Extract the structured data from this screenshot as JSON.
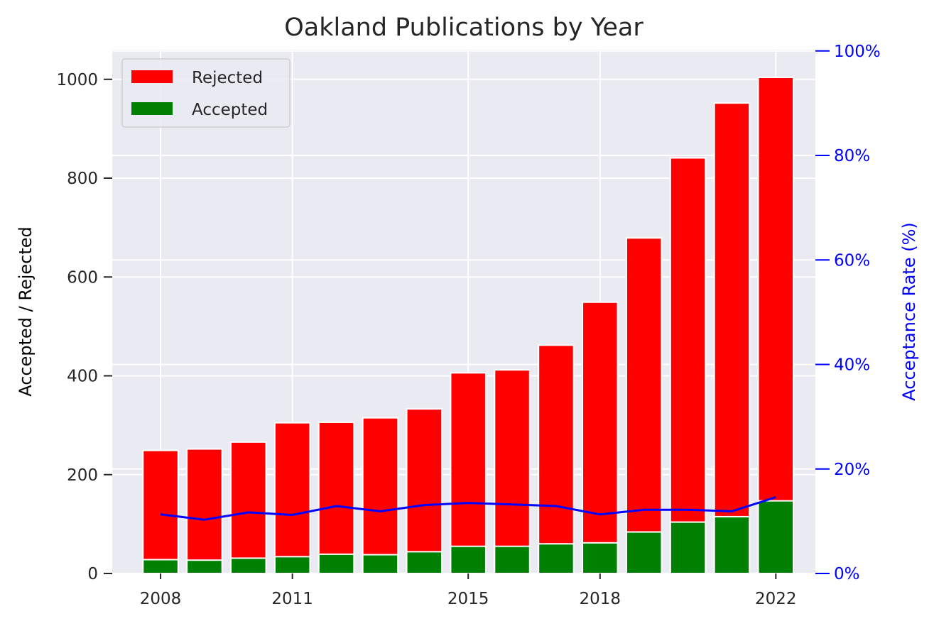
{
  "chart_data": {
    "type": "bar",
    "title": "Oakland Publications by Year",
    "ylabel": "Accepted / Rejected",
    "ylabel_right": "Acceptance Rate (%)",
    "x": [
      2008,
      2009,
      2010,
      2011,
      2012,
      2013,
      2014,
      2015,
      2016,
      2017,
      2018,
      2019,
      2020,
      2021,
      2022
    ],
    "x_tick_labels": [
      "2008",
      "2011",
      "2015",
      "2018",
      "2022"
    ],
    "x_tick_values": [
      2008,
      2011,
      2015,
      2018,
      2022
    ],
    "xlim": [
      2006.9,
      2022.9
    ],
    "ylim": [
      0,
      1060
    ],
    "y_ticks": [
      0,
      200,
      400,
      600,
      800,
      1000
    ],
    "y_tick_labels": [
      "0",
      "200",
      "400",
      "600",
      "800",
      "1000"
    ],
    "ylim_right": [
      0,
      100
    ],
    "y_ticks_right": [
      0,
      20,
      40,
      60,
      80,
      100
    ],
    "y_tick_labels_right": [
      "0%",
      "20%",
      "40%",
      "60%",
      "80%",
      "100%"
    ],
    "series": [
      {
        "name": "Rejected",
        "type": "bar",
        "color": "#ff0000",
        "values": [
          249,
          252,
          266,
          305,
          306,
          315,
          333,
          406,
          412,
          462,
          549,
          679,
          841,
          952,
          1004
        ]
      },
      {
        "name": "Accepted",
        "type": "bar",
        "color": "#008000",
        "values": [
          28,
          27,
          31,
          34,
          39,
          38,
          44,
          55,
          55,
          60,
          62,
          84,
          104,
          115,
          147
        ]
      },
      {
        "type": "line",
        "color": "#0000ff",
        "axis": "right",
        "values": [
          11.3,
          10.3,
          11.7,
          11.2,
          12.9,
          11.9,
          13.1,
          13.5,
          13.2,
          12.9,
          11.3,
          12.2,
          12.2,
          11.9,
          14.6
        ]
      }
    ],
    "legend": {
      "placement": "top-left",
      "entries": [
        "Rejected",
        "Accepted"
      ]
    },
    "grid": true
  }
}
